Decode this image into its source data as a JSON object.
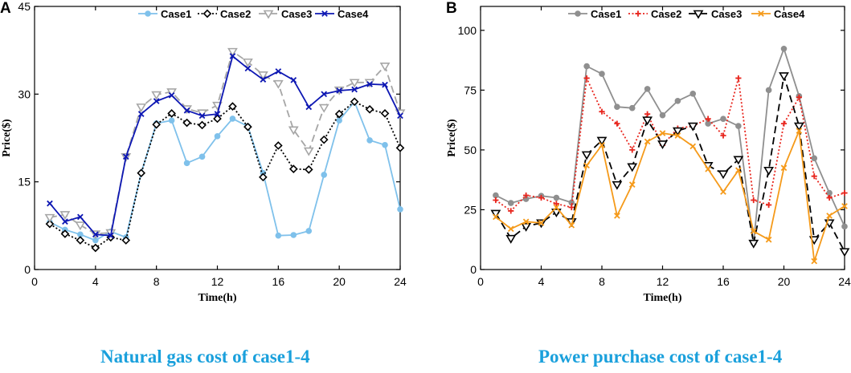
{
  "captions": {
    "left": "Natural gas cost of case1-4",
    "right": "Power purchase cost of case1-4"
  },
  "panel_letters": {
    "left": "A",
    "right": "B"
  },
  "chart_data": [
    {
      "type": "line",
      "title": "",
      "xlabel": "Time(h)",
      "ylabel": "Price($)",
      "xlim": [
        0,
        24
      ],
      "ylim": [
        0,
        45
      ],
      "xticks": [
        0,
        4,
        8,
        12,
        16,
        20,
        24
      ],
      "yticks": [
        0,
        15,
        30,
        45
      ],
      "legend_position": "top",
      "x": [
        1,
        2,
        3,
        4,
        5,
        6,
        7,
        8,
        9,
        10,
        11,
        12,
        13,
        14,
        15,
        16,
        17,
        18,
        19,
        20,
        21,
        22,
        23,
        24
      ],
      "series": [
        {
          "name": "Case1",
          "color": "#7fc1eb",
          "marker": "circle",
          "dash": "solid",
          "values": [
            8.1,
            6.8,
            6.0,
            5.0,
            6.5,
            5.5,
            16.5,
            25.0,
            25.5,
            18.2,
            19.3,
            22.8,
            25.8,
            24.5,
            16.5,
            5.8,
            5.9,
            6.6,
            16.2,
            25.5,
            28.7,
            22.1,
            21.3,
            10.3
          ]
        },
        {
          "name": "Case2",
          "color": "#000000",
          "marker": "diamond",
          "dash": "dotted",
          "values": [
            7.8,
            6.1,
            5.0,
            3.7,
            5.5,
            5.0,
            16.5,
            24.8,
            26.7,
            25.1,
            24.7,
            25.8,
            27.9,
            24.4,
            15.8,
            21.2,
            17.2,
            17.1,
            22.2,
            26.6,
            28.7,
            27.4,
            26.7,
            20.8
          ]
        },
        {
          "name": "Case3",
          "color": "#a6a6a6",
          "marker": "triangle-down",
          "dash": "dashed",
          "values": [
            8.9,
            9.4,
            7.6,
            6.1,
            6.3,
            19.3,
            27.8,
            29.9,
            30.4,
            27.5,
            26.8,
            28.1,
            37.3,
            35.5,
            33.3,
            31.8,
            23.9,
            20.3,
            27.7,
            30.7,
            32.0,
            32.0,
            34.8,
            26.8
          ]
        },
        {
          "name": "Case4",
          "color": "#0d17b3",
          "marker": "x",
          "dash": "solid",
          "values": [
            11.3,
            8.2,
            9.0,
            6.0,
            5.8,
            19.3,
            26.6,
            28.8,
            29.8,
            27.2,
            26.3,
            26.6,
            36.5,
            34.4,
            32.5,
            33.9,
            32.4,
            27.8,
            30.0,
            30.6,
            30.8,
            31.7,
            31.6,
            26.3
          ]
        }
      ]
    },
    {
      "type": "line",
      "title": "",
      "xlabel": "Time(h)",
      "ylabel": "Price($)",
      "xlim": [
        0,
        24
      ],
      "ylim": [
        0,
        110
      ],
      "xticks": [
        0,
        4,
        8,
        12,
        16,
        20,
        24
      ],
      "yticks": [
        0,
        25,
        50,
        75,
        100
      ],
      "legend_position": "top",
      "x": [
        1,
        2,
        3,
        4,
        5,
        6,
        7,
        8,
        9,
        10,
        11,
        12,
        13,
        14,
        15,
        16,
        17,
        18,
        19,
        20,
        21,
        22,
        23,
        24
      ],
      "series": [
        {
          "name": "Case1",
          "color": "#8f8f8f",
          "marker": "circle",
          "dash": "solid",
          "values": [
            31.0,
            27.8,
            29.5,
            30.8,
            30.0,
            28.0,
            85.0,
            81.8,
            68.0,
            67.5,
            75.5,
            64.5,
            70.5,
            73.5,
            61.0,
            63.0,
            60.0,
            11.0,
            75.0,
            92.3,
            72.5,
            46.5,
            32.0,
            18.0
          ]
        },
        {
          "name": "Case2",
          "color": "#e8261e",
          "marker": "plus",
          "dash": "dotted",
          "values": [
            29.0,
            24.5,
            31.0,
            30.0,
            27.5,
            26.0,
            80.0,
            66.0,
            61.0,
            50.0,
            65.0,
            52.0,
            59.0,
            60.0,
            63.0,
            56.0,
            80.0,
            29.0,
            27.0,
            61.0,
            72.0,
            39.0,
            30.0,
            32.0
          ]
        },
        {
          "name": "Case3",
          "color": "#000000",
          "marker": "triangle-down",
          "dash": "dashed",
          "values": [
            23.5,
            13.0,
            18.0,
            19.5,
            24.0,
            20.0,
            48.0,
            54.0,
            35.5,
            43.0,
            62.5,
            52.5,
            58.0,
            60.0,
            43.5,
            40.0,
            46.0,
            11.0,
            41.5,
            81.0,
            60.0,
            12.5,
            19.5,
            7.5
          ]
        },
        {
          "name": "Case4",
          "color": "#f59a1a",
          "marker": "x",
          "dash": "solid",
          "values": [
            22.0,
            17.0,
            20.0,
            19.5,
            26.0,
            18.5,
            43.5,
            52.0,
            22.5,
            35.5,
            53.5,
            57.0,
            56.0,
            51.5,
            42.0,
            32.5,
            41.5,
            16.0,
            12.5,
            42.5,
            58.0,
            3.5,
            22.5,
            26.5
          ]
        }
      ]
    }
  ]
}
